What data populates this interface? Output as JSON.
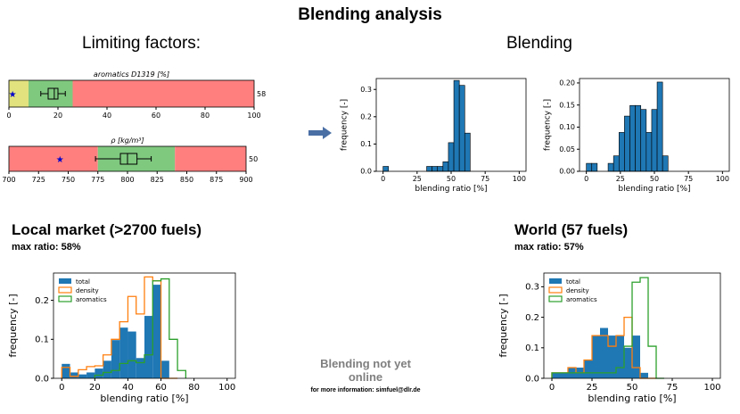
{
  "title": "Blending analysis",
  "limiting_title": "Limiting factors:",
  "blending_title": "Blending",
  "local": {
    "title": "Local market (>2700 fuels)",
    "max_ratio": "max ratio: 58%"
  },
  "world": {
    "title": "World (57 fuels)",
    "max_ratio": "max ratio: 57%"
  },
  "notice": {
    "main": "Blending not yet online",
    "sub": "for more information: simfuel@dlr.de"
  },
  "colors": {
    "red": "#ff7f7f",
    "green": "#7fc97f",
    "yellow": "#e2e27f",
    "blue": "#1f77b4",
    "orange": "#ff7f0e",
    "lgreen": "#2ca02c",
    "arrow": "#4a6fa5"
  },
  "chart_data": [
    {
      "type": "range-bar",
      "title": "aromatics D1319 [%]",
      "xlim": [
        0,
        100
      ],
      "ticks": [
        0,
        20,
        40,
        60,
        80,
        100
      ],
      "segments": [
        {
          "from": 0,
          "to": 8,
          "color": "#e2e27f"
        },
        {
          "from": 8,
          "to": 26,
          "color": "#7fc97f"
        },
        {
          "from": 26,
          "to": 100,
          "color": "#ff7f7f"
        }
      ],
      "box": {
        "whisker_low": 13,
        "q1": 16,
        "median": 18.5,
        "q3": 20,
        "whisker_high": 23
      },
      "star": 1.5,
      "right_label": "58"
    },
    {
      "type": "range-bar",
      "title": "ρ [kg/m³]",
      "xlim": [
        700,
        900
      ],
      "ticks": [
        700,
        725,
        750,
        775,
        800,
        825,
        850,
        875,
        900
      ],
      "segments": [
        {
          "from": 700,
          "to": 775,
          "color": "#ff7f7f"
        },
        {
          "from": 775,
          "to": 840,
          "color": "#7fc97f"
        },
        {
          "from": 840,
          "to": 900,
          "color": "#ff7f7f"
        }
      ],
      "box": {
        "whisker_low": 773,
        "q1": 794,
        "median": 800,
        "q3": 808,
        "whisker_high": 820
      },
      "star": 743,
      "right_label": "50"
    },
    {
      "type": "histogram",
      "xlabel": "blending ratio [%]",
      "ylabel": "frequency [-]",
      "xlim": [
        -5,
        105
      ],
      "ylim": [
        0,
        0.34
      ],
      "xticks": [
        0,
        25,
        50,
        75,
        100
      ],
      "yticks": [
        0.0,
        0.1,
        0.2,
        0.3
      ],
      "bin_width": 4,
      "series": [
        {
          "edges_start": 0,
          "values": [
            0.018,
            0,
            0,
            0,
            0,
            0,
            0,
            0,
            0.018,
            0.018,
            0.018,
            0.035,
            0.105,
            0.333,
            0.315,
            0.14
          ]
        }
      ]
    },
    {
      "type": "histogram",
      "xlabel": "blending ratio [%]",
      "ylabel": "frequency [-]",
      "xlim": [
        -5,
        105
      ],
      "ylim": [
        0,
        0.21
      ],
      "xticks": [
        0,
        25,
        50,
        75,
        100
      ],
      "yticks": [
        0.0,
        0.05,
        0.1,
        0.15,
        0.2
      ],
      "bin_width": 4,
      "series": [
        {
          "edges_start": 0,
          "values": [
            0.018,
            0.018,
            0,
            0,
            0.018,
            0.035,
            0.088,
            0.125,
            0.149,
            0.149,
            0.14,
            0.088,
            0.14,
            0.202,
            0.035
          ]
        }
      ]
    },
    {
      "type": "histogram",
      "xlabel": "blending ratio [%]",
      "ylabel": "frequency [-]",
      "xlim": [
        -5,
        105
      ],
      "ylim": [
        0,
        0.27
      ],
      "xticks": [
        0,
        20,
        40,
        60,
        80,
        100
      ],
      "yticks": [
        0.0,
        0.1,
        0.2
      ],
      "legend": "upper-left",
      "series": [
        {
          "name": "total",
          "style": "filled",
          "color": "#1f77b4",
          "edges": [
            0,
            5,
            10,
            15,
            20,
            25,
            30,
            35,
            40,
            45,
            50,
            55,
            60,
            65,
            70
          ],
          "values": [
            0.037,
            0.015,
            0.01,
            0.015,
            0.025,
            0.045,
            0.098,
            0.13,
            0.12,
            0.052,
            0.16,
            0.24,
            0.045,
            0,
            0
          ]
        },
        {
          "name": "density",
          "style": "step",
          "color": "#ff7f0e",
          "edges": [
            0,
            5,
            10,
            15,
            20,
            25,
            30,
            35,
            40,
            45,
            50,
            55,
            60,
            65,
            70
          ],
          "values": [
            0.028,
            0.005,
            0.022,
            0.03,
            0.032,
            0.06,
            0.1,
            0.145,
            0.21,
            0.165,
            0.26,
            0.25,
            0,
            0,
            0
          ]
        },
        {
          "name": "aromatics",
          "style": "step",
          "color": "#2ca02c",
          "edges": [
            20,
            25,
            30,
            35,
            40,
            45,
            50,
            55,
            60,
            65,
            70,
            75
          ],
          "values": [
            0.008,
            0.015,
            0.02,
            0.038,
            0.045,
            0.04,
            0.06,
            0.25,
            0.255,
            0.1,
            0.02
          ]
        }
      ]
    },
    {
      "type": "histogram",
      "xlabel": "blending ratio [%]",
      "ylabel": "frequency [-]",
      "xlim": [
        -5,
        105
      ],
      "ylim": [
        0,
        0.345
      ],
      "xticks": [
        0,
        25,
        50,
        75,
        100
      ],
      "yticks": [
        0.0,
        0.1,
        0.2,
        0.3
      ],
      "legend": "upper-left",
      "series": [
        {
          "name": "total",
          "style": "filled",
          "color": "#1f77b4",
          "edges": [
            0,
            5,
            10,
            15,
            20,
            25,
            30,
            35,
            40,
            45,
            50,
            55,
            60,
            65
          ],
          "values": [
            0.018,
            0.018,
            0.035,
            0.035,
            0.06,
            0.14,
            0.165,
            0.14,
            0.14,
            0.1,
            0.14,
            0.018,
            0,
            0
          ]
        },
        {
          "name": "density",
          "style": "step",
          "color": "#ff7f0e",
          "edges": [
            0,
            5,
            10,
            15,
            20,
            25,
            30,
            35,
            40,
            45,
            50,
            55,
            60,
            65
          ],
          "values": [
            0.018,
            0.018,
            0.035,
            0.018,
            0.06,
            0.14,
            0.14,
            0.105,
            0.14,
            0.2,
            0.035,
            0,
            0,
            0
          ]
        },
        {
          "name": "aromatics",
          "style": "step",
          "color": "#2ca02c",
          "edges": [
            0,
            5,
            10,
            15,
            20,
            25,
            30,
            35,
            40,
            45,
            50,
            55,
            60,
            65,
            70
          ],
          "values": [
            0.018,
            0.018,
            0.018,
            0.018,
            0.018,
            0.018,
            0.018,
            0.018,
            0.035,
            0.105,
            0.315,
            0.33,
            0.105,
            0,
            0
          ]
        }
      ]
    }
  ]
}
